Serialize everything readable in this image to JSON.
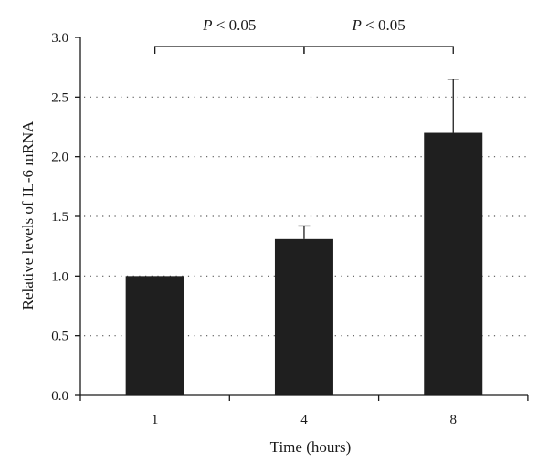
{
  "chart_data": {
    "type": "bar",
    "title": "",
    "xlabel": "Time (hours)",
    "ylabel": "Relative levels of IL-6 mRNA",
    "categories": [
      "1",
      "4",
      "8"
    ],
    "values": [
      1.0,
      1.31,
      2.2
    ],
    "error_upper": [
      0.0,
      0.11,
      0.45
    ],
    "ylim": [
      0.0,
      3.0
    ],
    "yticks": [
      "0.0",
      "0.5",
      "1.0",
      "1.5",
      "2.0",
      "2.5",
      "3.0"
    ],
    "grid": "horizontal dotted",
    "legend": "none",
    "bar_color": "#1f1f1f",
    "significance": [
      {
        "from": "1",
        "to": "4",
        "label_italic": "P",
        "label_rest": " < 0.05"
      },
      {
        "from": "4",
        "to": "8",
        "label_italic": "P",
        "label_rest": " < 0.05"
      }
    ]
  }
}
